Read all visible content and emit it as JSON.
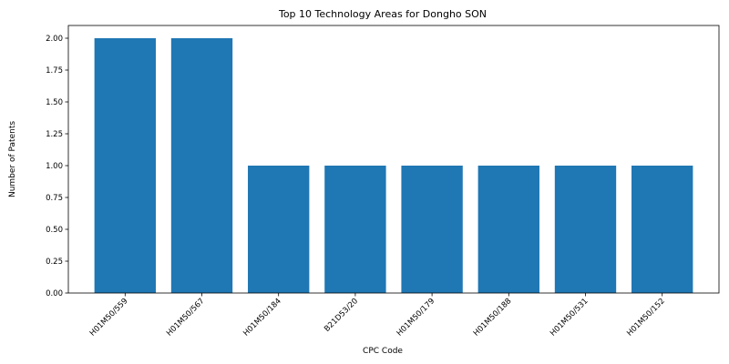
{
  "chart_data": {
    "type": "bar",
    "title": "Top 10 Technology Areas for Dongho SON",
    "xlabel": "CPC Code",
    "ylabel": "Number of Patents",
    "categories": [
      "H01M50/559",
      "H01M50/567",
      "H01M50/184",
      "B21D53/20",
      "H01M50/179",
      "H01M50/188",
      "H01M50/531",
      "H01M50/152"
    ],
    "values": [
      2,
      2,
      1,
      1,
      1,
      1,
      1,
      1
    ],
    "ylim": [
      0,
      2.1
    ],
    "yticks": [
      "0.00",
      "0.25",
      "0.50",
      "0.75",
      "1.00",
      "1.25",
      "1.50",
      "1.75",
      "2.00"
    ],
    "grid": false,
    "legend": "none",
    "bar_color": "#1f77b4"
  }
}
